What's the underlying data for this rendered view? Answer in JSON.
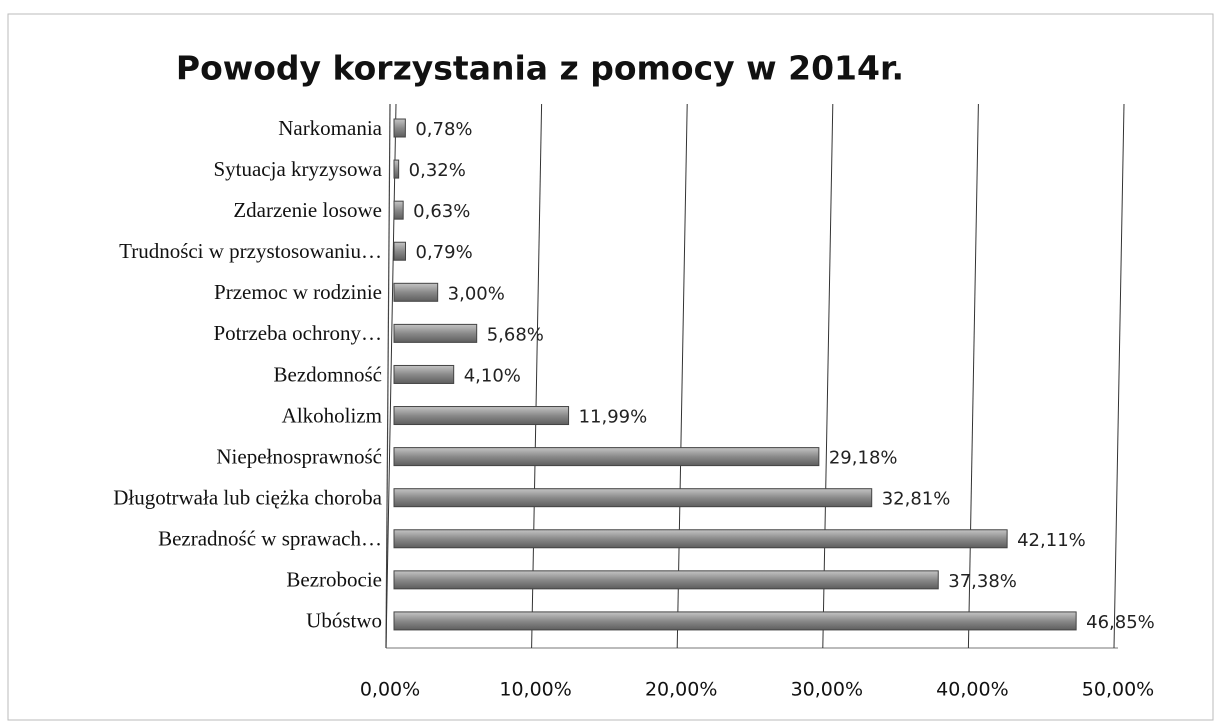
{
  "chart_data": {
    "type": "bar",
    "orientation": "horizontal",
    "title": "Powody korzystania z pomocy w 2014r.",
    "categories": [
      "Narkomania",
      "Sytuacja kryzysowa",
      "Zdarzenie losowe",
      "Trudności w przystosowaniu…",
      "Przemoc w rodzinie",
      "Potrzeba ochrony…",
      "Bezdomność",
      "Alkoholizm",
      "Niepełnosprawność",
      "Długotrwała lub ciężka choroba",
      "Bezradność w sprawach…",
      "Bezrobocie",
      "Ubóstwo"
    ],
    "values": [
      0.78,
      0.32,
      0.63,
      0.79,
      3.0,
      5.68,
      4.1,
      11.99,
      29.18,
      32.81,
      42.11,
      37.38,
      46.85
    ],
    "value_labels": [
      "0,78%",
      "0,32%",
      "0,63%",
      "0,79%",
      "3,00%",
      "5,68%",
      "4,10%",
      "11,99%",
      "29,18%",
      "32,81%",
      "42,11%",
      "37,38%",
      "46,85%"
    ],
    "color": "#8a8a8a",
    "xlim": [
      0,
      50
    ],
    "xticks": [
      {
        "value": 0,
        "label": "0,00%"
      },
      {
        "value": 10,
        "label": "10,00%"
      },
      {
        "value": 20,
        "label": "20,00%"
      },
      {
        "value": 30,
        "label": "30,00%"
      },
      {
        "value": 40,
        "label": "40,00%"
      },
      {
        "value": 50,
        "label": "50,00%"
      }
    ],
    "grid": true
  }
}
